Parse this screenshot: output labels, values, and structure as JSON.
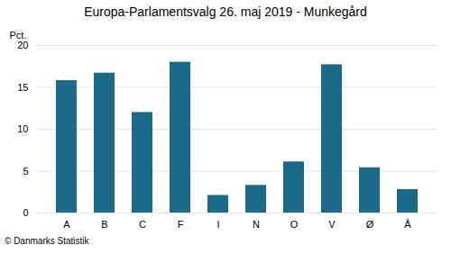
{
  "chart_data": {
    "type": "bar",
    "title": "Europa-Parlamentsvalg 26. maj 2019 - Munkegård",
    "categories": [
      "A",
      "B",
      "C",
      "F",
      "I",
      "N",
      "O",
      "V",
      "Ø",
      "Å"
    ],
    "values": [
      15.8,
      16.7,
      12.0,
      18.0,
      2.1,
      3.3,
      6.1,
      17.7,
      5.4,
      2.8
    ],
    "color": "#1a6b8a",
    "ylabel": "Pct.",
    "footer": "© Danmarks Statistik",
    "ylim": [
      0,
      20
    ],
    "yticks": [
      0,
      5,
      10,
      15,
      20
    ],
    "grid": true
  }
}
